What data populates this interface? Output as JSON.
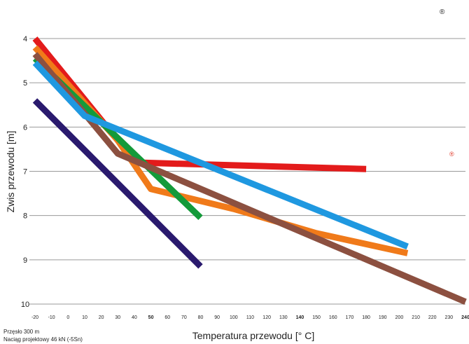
{
  "chart_data": {
    "type": "line",
    "title": "",
    "xlabel": "Temperatura przewodu [° C]",
    "ylabel": "Zwis przewodu [m]",
    "xlim": [
      -20,
      240
    ],
    "ylim": [
      10,
      4
    ],
    "y_inverted": true,
    "grid": "horizontal",
    "x_ticks": [
      -20,
      -10,
      0,
      10,
      20,
      30,
      40,
      50,
      60,
      70,
      80,
      90,
      100,
      110,
      120,
      130,
      140,
      150,
      160,
      170,
      180,
      190,
      200,
      210,
      220,
      230,
      240
    ],
    "x_tick_labels": [
      "-20",
      "-10",
      "0",
      "10",
      "20",
      "30",
      "40",
      "50",
      "60",
      "70",
      "80",
      "90",
      "100",
      "110",
      "120",
      "130",
      "140",
      "150",
      "160",
      "170",
      "180",
      "190",
      "200",
      "210",
      "220",
      "230",
      "240"
    ],
    "y_ticks": [
      4,
      5,
      6,
      7,
      8,
      9,
      10
    ],
    "y_tick_labels": [
      "4",
      "5",
      "6",
      "7",
      "8",
      "9",
      "10"
    ],
    "series": [
      {
        "color": "#e31b1b",
        "points": [
          [
            -20,
            4.0
          ],
          [
            30,
            6.3
          ],
          [
            40,
            6.8
          ],
          [
            180,
            6.95
          ]
        ]
      },
      {
        "color": "#f07a1a",
        "points": [
          [
            -20,
            4.2
          ],
          [
            30,
            6.3
          ],
          [
            50,
            7.4
          ],
          [
            100,
            7.85
          ],
          [
            150,
            8.4
          ],
          [
            205,
            8.85
          ]
        ]
      },
      {
        "color": "#149a3a",
        "points": [
          [
            -20,
            4.45
          ],
          [
            80,
            8.05
          ]
        ]
      },
      {
        "color": "#2a1a6e",
        "points": [
          [
            -20,
            5.4
          ],
          [
            80,
            9.15
          ]
        ]
      },
      {
        "color": "#8c5040",
        "points": [
          [
            -20,
            4.35
          ],
          [
            30,
            6.6
          ],
          [
            240,
            9.95
          ]
        ]
      },
      {
        "color": "#1f98e0",
        "points": [
          [
            -20,
            4.55
          ],
          [
            10,
            5.75
          ],
          [
            205,
            8.7
          ]
        ]
      }
    ],
    "notes": [
      "Przęsło 300 m",
      "Naciąg projektowy 46 kN (-5Sn)"
    ],
    "marks": [
      "®",
      "®"
    ]
  }
}
